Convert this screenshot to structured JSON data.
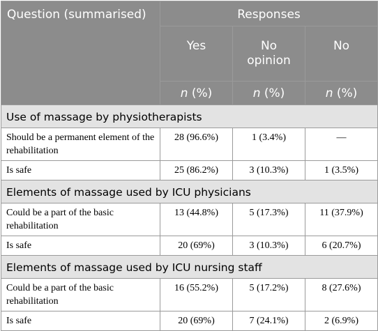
{
  "header": {
    "question": "Question (summarised)",
    "responses": "Responses",
    "columns": [
      "Yes",
      "No opinion",
      "No"
    ],
    "unit_n": "n",
    "unit_pct": " (%)"
  },
  "sections": [
    {
      "title": "Use of massage by physiotherapists",
      "rows": [
        {
          "question": "Should be a permanent element of the rehabilitation",
          "yes": "28 (96.6%)",
          "no_opinion": "1 (3.4%)",
          "no": "—"
        },
        {
          "question": "Is safe",
          "yes": "25 (86.2%)",
          "no_opinion": "3 (10.3%)",
          "no": "1 (3.5%)"
        }
      ]
    },
    {
      "title": "Elements of massage used by ICU physicians",
      "rows": [
        {
          "question": "Could be a part of the basic rehabilitation",
          "yes": "13 (44.8%)",
          "no_opinion": "5 (17.3%)",
          "no": "11 (37.9%)"
        },
        {
          "question": "Is safe",
          "yes": "20 (69%)",
          "no_opinion": "3 (10.3%)",
          "no": "6 (20.7%)"
        }
      ]
    },
    {
      "title": "Elements of massage used by ICU nursing staff",
      "rows": [
        {
          "question": "Could be a part of the basic rehabilitation",
          "yes": "16 (55.2%)",
          "no_opinion": "5 (17.2%)",
          "no": "8 (27.6%)"
        },
        {
          "question": "Is safe",
          "yes": "20 (69%)",
          "no_opinion": "7 (24.1%)",
          "no": "2 (6.9%)"
        }
      ]
    }
  ]
}
